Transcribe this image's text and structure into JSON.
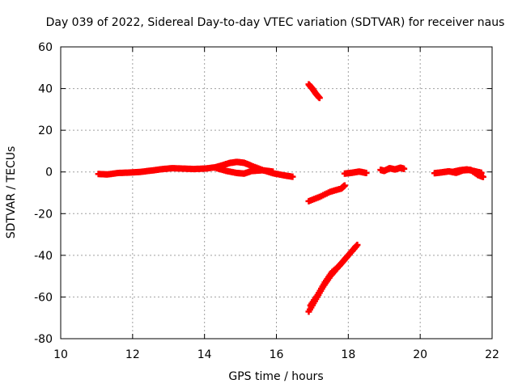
{
  "chart_data": {
    "type": "scatter",
    "title": "Day 039 of 2022, Sidereal Day-to-day VTEC variation (SDTVAR) for receiver naus",
    "xlabel": "GPS time / hours",
    "ylabel": "SDTVAR / TECUs",
    "xlim": [
      10,
      22
    ],
    "ylim": [
      -80,
      60
    ],
    "xticks": [
      10,
      12,
      14,
      16,
      18,
      20,
      22
    ],
    "yticks": [
      -80,
      -60,
      -40,
      -20,
      0,
      20,
      40,
      60
    ],
    "xtick_labels": [
      "10",
      "12",
      "14",
      "16",
      "18",
      "20",
      "22"
    ],
    "ytick_labels": [
      "-80",
      "-60",
      "-40",
      "-20",
      "0",
      "20",
      "40",
      "60"
    ],
    "grid": true,
    "marker_color": "#ff0000",
    "series": [
      {
        "x": [
          11.05,
          11.3,
          11.6,
          11.9,
          12.2,
          12.5,
          12.8,
          13.1,
          13.4,
          13.7,
          14.0,
          14.3,
          14.5,
          14.7,
          14.9,
          15.1,
          15.3,
          15.6,
          15.9,
          16.2,
          16.45
        ],
        "y": [
          -1.0,
          -1.2,
          -0.5,
          -0.3,
          0.0,
          0.6,
          1.3,
          1.8,
          1.6,
          1.4,
          1.6,
          2.2,
          3.2,
          4.3,
          4.8,
          4.4,
          3.0,
          1.0,
          -0.6,
          -1.6,
          -2.3
        ]
      },
      {
        "x": [
          14.3,
          14.6,
          14.9,
          15.1,
          15.3,
          15.6,
          15.9
        ],
        "y": [
          2.0,
          0.5,
          -0.5,
          -0.8,
          0.4,
          0.8,
          0.2
        ]
      },
      {
        "x": [
          16.9,
          17.0,
          17.1,
          17.2
        ],
        "y": [
          42,
          40,
          37.5,
          35.5
        ]
      },
      {
        "x": [
          16.9,
          17.2,
          17.5,
          17.8,
          17.9
        ],
        "y": [
          -14.0,
          -12.0,
          -9.5,
          -8.0,
          -6.5
        ]
      },
      {
        "x": [
          16.9,
          17.1,
          17.3,
          17.5,
          17.7,
          17.9,
          18.1,
          18.25
        ],
        "y": [
          -67,
          -61,
          -55,
          -50,
          -46,
          -42,
          -38,
          -35
        ]
      },
      {
        "x": [
          16.95,
          17.15,
          17.35,
          17.55,
          17.75,
          17.95,
          18.2
        ],
        "y": [
          -64,
          -59,
          -53,
          -48,
          -45,
          -41,
          -36
        ]
      },
      {
        "x": [
          17.9,
          18.1,
          18.3,
          18.5
        ],
        "y": [
          -0.8,
          -0.4,
          0.2,
          -0.5
        ]
      },
      {
        "x": [
          18.9,
          19.0,
          19.15,
          19.3,
          19.45,
          19.55
        ],
        "y": [
          1.0,
          0.5,
          1.8,
          1.2,
          2.0,
          1.5
        ]
      },
      {
        "x": [
          20.4,
          20.6,
          20.8,
          21.0,
          21.2,
          21.4,
          21.6,
          21.75
        ],
        "y": [
          -0.6,
          -0.2,
          0.3,
          -0.4,
          0.8,
          1.0,
          -1.4,
          -2.4
        ]
      },
      {
        "x": [
          20.9,
          21.1,
          21.3,
          21.5,
          21.7
        ],
        "y": [
          0.0,
          0.8,
          1.2,
          0.4,
          -0.4
        ]
      }
    ]
  }
}
